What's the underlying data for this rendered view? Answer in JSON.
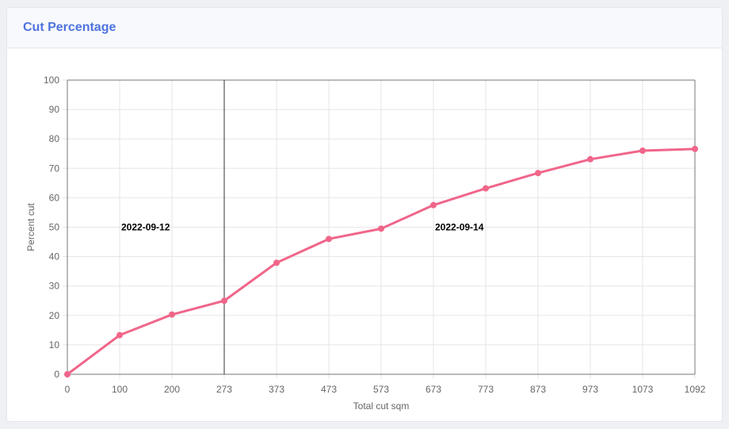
{
  "card": {
    "title": "Cut Percentage"
  },
  "chart_data": {
    "type": "line",
    "title": "",
    "xlabel": "Total cut sqm",
    "ylabel": "Percent cut",
    "x": [
      0,
      100,
      200,
      273,
      373,
      473,
      573,
      673,
      773,
      873,
      973,
      1073,
      1092
    ],
    "x_tick_labels": [
      "0",
      "100",
      "200",
      "273",
      "373",
      "473",
      "573",
      "673",
      "773",
      "873",
      "973",
      "1073",
      "1092"
    ],
    "y_ticks": [
      0,
      10,
      20,
      30,
      40,
      50,
      60,
      70,
      80,
      90,
      100
    ],
    "ylim": [
      0,
      100
    ],
    "grid": true,
    "series": [
      {
        "values": [
          0,
          13.3,
          20.3,
          25,
          37.9,
          46,
          49.5,
          57.5,
          63.2,
          68.4,
          73.1,
          76,
          76.6
        ],
        "color": "#f0668a"
      }
    ],
    "annotations": [
      {
        "type": "vertical-line",
        "x": 273,
        "color": "#333333"
      },
      {
        "type": "label",
        "text": "2022-09-12",
        "x": 100,
        "y": 50
      },
      {
        "type": "label",
        "text": "2022-09-14",
        "x": 673,
        "y": 50
      }
    ]
  }
}
